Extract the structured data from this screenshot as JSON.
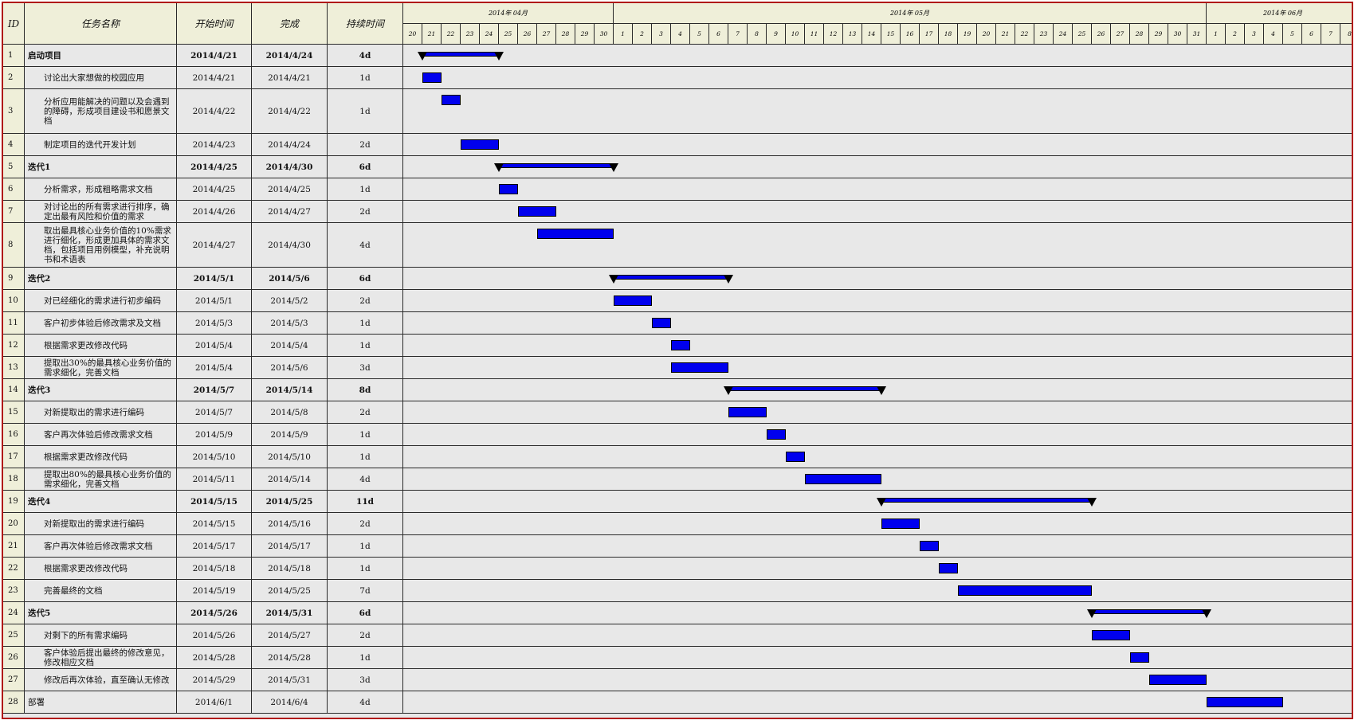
{
  "headers": {
    "id": "ID",
    "name": "任务名称",
    "start": "开始时间",
    "finish": "完成",
    "duration": "持续时间"
  },
  "months": [
    {
      "label": "2014年 04月",
      "days": [
        "20",
        "21",
        "22",
        "23",
        "24",
        "25",
        "26",
        "27",
        "28",
        "29",
        "30"
      ]
    },
    {
      "label": "2014年 05月",
      "days": [
        "1",
        "2",
        "3",
        "4",
        "5",
        "6",
        "7",
        "8",
        "9",
        "10",
        "11",
        "12",
        "13",
        "14",
        "15",
        "16",
        "17",
        "18",
        "19",
        "20",
        "21",
        "22",
        "23",
        "24",
        "25",
        "26",
        "27",
        "28",
        "29",
        "30",
        "31"
      ]
    },
    {
      "label": "2014年 06月",
      "days": [
        "1",
        "2",
        "3",
        "4",
        "5",
        "6",
        "7",
        "8"
      ]
    }
  ],
  "colors": {
    "bar": "#0000ee",
    "header_bg": "#efefd9",
    "grid_bg": "#e8e8e8",
    "frame": "#b01818"
  },
  "tasks": [
    {
      "id": "1",
      "name": "启动项目",
      "start": "2014/4/21",
      "finish": "2014/4/24",
      "duration": "4d",
      "summary": true,
      "s": 1,
      "e": 5
    },
    {
      "id": "2",
      "name": "讨论出大家想做的校园应用",
      "start": "2014/4/21",
      "finish": "2014/4/21",
      "duration": "1d",
      "summary": false,
      "s": 1,
      "e": 2
    },
    {
      "id": "3",
      "name": "分析应用能解决的问题以及会遇到的障碍，形成项目建设书和愿景文档",
      "start": "2014/4/22",
      "finish": "2014/4/22",
      "duration": "1d",
      "summary": false,
      "s": 2,
      "e": 3
    },
    {
      "id": "4",
      "name": "制定项目的迭代开发计划",
      "start": "2014/4/23",
      "finish": "2014/4/24",
      "duration": "2d",
      "summary": false,
      "s": 3,
      "e": 5
    },
    {
      "id": "5",
      "name": "迭代1",
      "start": "2014/4/25",
      "finish": "2014/4/30",
      "duration": "6d",
      "summary": true,
      "s": 5,
      "e": 11
    },
    {
      "id": "6",
      "name": "分析需求，形成粗略需求文档",
      "start": "2014/4/25",
      "finish": "2014/4/25",
      "duration": "1d",
      "summary": false,
      "s": 5,
      "e": 6
    },
    {
      "id": "7",
      "name": "对讨论出的所有需求进行排序，确定出最有风险和价值的需求",
      "start": "2014/4/26",
      "finish": "2014/4/27",
      "duration": "2d",
      "summary": false,
      "s": 6,
      "e": 8
    },
    {
      "id": "8",
      "name": "取出最具核心业务价值的10%需求进行细化，形成更加具体的需求文档，包括项目用例模型，补充说明书和术语表",
      "start": "2014/4/27",
      "finish": "2014/4/30",
      "duration": "4d",
      "summary": false,
      "s": 7,
      "e": 11
    },
    {
      "id": "9",
      "name": "迭代2",
      "start": "2014/5/1",
      "finish": "2014/5/6",
      "duration": "6d",
      "summary": true,
      "s": 11,
      "e": 17
    },
    {
      "id": "10",
      "name": "对已经细化的需求进行初步编码",
      "start": "2014/5/1",
      "finish": "2014/5/2",
      "duration": "2d",
      "summary": false,
      "s": 11,
      "e": 13
    },
    {
      "id": "11",
      "name": "客户初步体验后修改需求及文档",
      "start": "2014/5/3",
      "finish": "2014/5/3",
      "duration": "1d",
      "summary": false,
      "s": 13,
      "e": 14
    },
    {
      "id": "12",
      "name": "根据需求更改修改代码",
      "start": "2014/5/4",
      "finish": "2014/5/4",
      "duration": "1d",
      "summary": false,
      "s": 14,
      "e": 15
    },
    {
      "id": "13",
      "name": "提取出30%的最具核心业务价值的需求细化，完善文档",
      "start": "2014/5/4",
      "finish": "2014/5/6",
      "duration": "3d",
      "summary": false,
      "s": 14,
      "e": 17
    },
    {
      "id": "14",
      "name": "迭代3",
      "start": "2014/5/7",
      "finish": "2014/5/14",
      "duration": "8d",
      "summary": true,
      "s": 17,
      "e": 25
    },
    {
      "id": "15",
      "name": "对新提取出的需求进行编码",
      "start": "2014/5/7",
      "finish": "2014/5/8",
      "duration": "2d",
      "summary": false,
      "s": 17,
      "e": 19
    },
    {
      "id": "16",
      "name": "客户再次体验后修改需求文档",
      "start": "2014/5/9",
      "finish": "2014/5/9",
      "duration": "1d",
      "summary": false,
      "s": 19,
      "e": 20
    },
    {
      "id": "17",
      "name": "根据需求更改修改代码",
      "start": "2014/5/10",
      "finish": "2014/5/10",
      "duration": "1d",
      "summary": false,
      "s": 20,
      "e": 21
    },
    {
      "id": "18",
      "name": "提取出80%的最具核心业务价值的需求细化，完善文档",
      "start": "2014/5/11",
      "finish": "2014/5/14",
      "duration": "4d",
      "summary": false,
      "s": 21,
      "e": 25
    },
    {
      "id": "19",
      "name": "迭代4",
      "start": "2014/5/15",
      "finish": "2014/5/25",
      "duration": "11d",
      "summary": true,
      "s": 25,
      "e": 36
    },
    {
      "id": "20",
      "name": "对新提取出的需求进行编码",
      "start": "2014/5/15",
      "finish": "2014/5/16",
      "duration": "2d",
      "summary": false,
      "s": 25,
      "e": 27
    },
    {
      "id": "21",
      "name": "客户再次体验后修改需求文档",
      "start": "2014/5/17",
      "finish": "2014/5/17",
      "duration": "1d",
      "summary": false,
      "s": 27,
      "e": 28
    },
    {
      "id": "22",
      "name": "根据需求更改修改代码",
      "start": "2014/5/18",
      "finish": "2014/5/18",
      "duration": "1d",
      "summary": false,
      "s": 28,
      "e": 29
    },
    {
      "id": "23",
      "name": "完善最终的文档",
      "start": "2014/5/19",
      "finish": "2014/5/25",
      "duration": "7d",
      "summary": false,
      "s": 29,
      "e": 36
    },
    {
      "id": "24",
      "name": "迭代5",
      "start": "2014/5/26",
      "finish": "2014/5/31",
      "duration": "6d",
      "summary": true,
      "s": 36,
      "e": 42
    },
    {
      "id": "25",
      "name": "对剩下的所有需求编码",
      "start": "2014/5/26",
      "finish": "2014/5/27",
      "duration": "2d",
      "summary": false,
      "s": 36,
      "e": 38
    },
    {
      "id": "26",
      "name": "客户体验后提出最终的修改意见，修改相应文档",
      "start": "2014/5/28",
      "finish": "2014/5/28",
      "duration": "1d",
      "summary": false,
      "s": 38,
      "e": 39
    },
    {
      "id": "27",
      "name": "修改后再次体验，直至确认无修改",
      "start": "2014/5/29",
      "finish": "2014/5/31",
      "duration": "3d",
      "summary": false,
      "s": 39,
      "e": 42
    },
    {
      "id": "28",
      "name": "部署",
      "start": "2014/6/1",
      "finish": "2014/6/4",
      "duration": "4d",
      "summary": false,
      "s": 42,
      "e": 46
    }
  ]
}
